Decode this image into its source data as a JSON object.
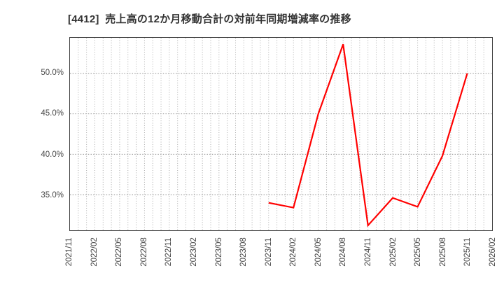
{
  "page": {
    "title": "[4412]  売上高の12か月移動合計の対前年同期増減率の推移"
  },
  "colors": {
    "line": "#ff0000",
    "grid_minor": "#a9a9a9",
    "grid_major": "#8f8f8f",
    "frame": "#3f3f3f",
    "title_text": "#333333",
    "tick_text": "#474747",
    "background": "#ffffff"
  },
  "chart_data": {
    "type": "line",
    "title": "[4412]  売上高の12か月移動合計の対前年同期増減率の推移",
    "x_axis": {
      "start": "2021/11",
      "end": "2026/02",
      "months_between_ticks": 3,
      "minor_gridlines": "monthly",
      "tick_labels": [
        "2021/11",
        "2022/02",
        "2022/05",
        "2022/08",
        "2022/11",
        "2023/02",
        "2023/05",
        "2023/08",
        "2023/11",
        "2024/02",
        "2024/05",
        "2024/08",
        "2024/11",
        "2025/02",
        "2025/05",
        "2025/08",
        "2025/11",
        "2026/02"
      ]
    },
    "y_axis": {
      "unit": "%",
      "range": [
        30.6,
        54.4
      ],
      "ticks": [
        {
          "value": 35,
          "label": "35.0%"
        },
        {
          "value": 40,
          "label": "40.0%"
        },
        {
          "value": 45,
          "label": "45.0%"
        },
        {
          "value": 50,
          "label": "50.0%"
        }
      ]
    },
    "grid": true,
    "legend_position": "none",
    "series": [
      {
        "points": [
          {
            "x": "2023/11",
            "y": 34.0
          },
          {
            "x": "2024/02",
            "y": 33.4
          },
          {
            "x": "2024/05",
            "y": 45.0
          },
          {
            "x": "2024/08",
            "y": 53.6
          },
          {
            "x": "2024/11",
            "y": 31.2
          },
          {
            "x": "2025/02",
            "y": 34.6
          },
          {
            "x": "2025/05",
            "y": 33.5
          },
          {
            "x": "2025/08",
            "y": 39.8
          },
          {
            "x": "2025/11",
            "y": 50.0
          }
        ]
      }
    ]
  }
}
